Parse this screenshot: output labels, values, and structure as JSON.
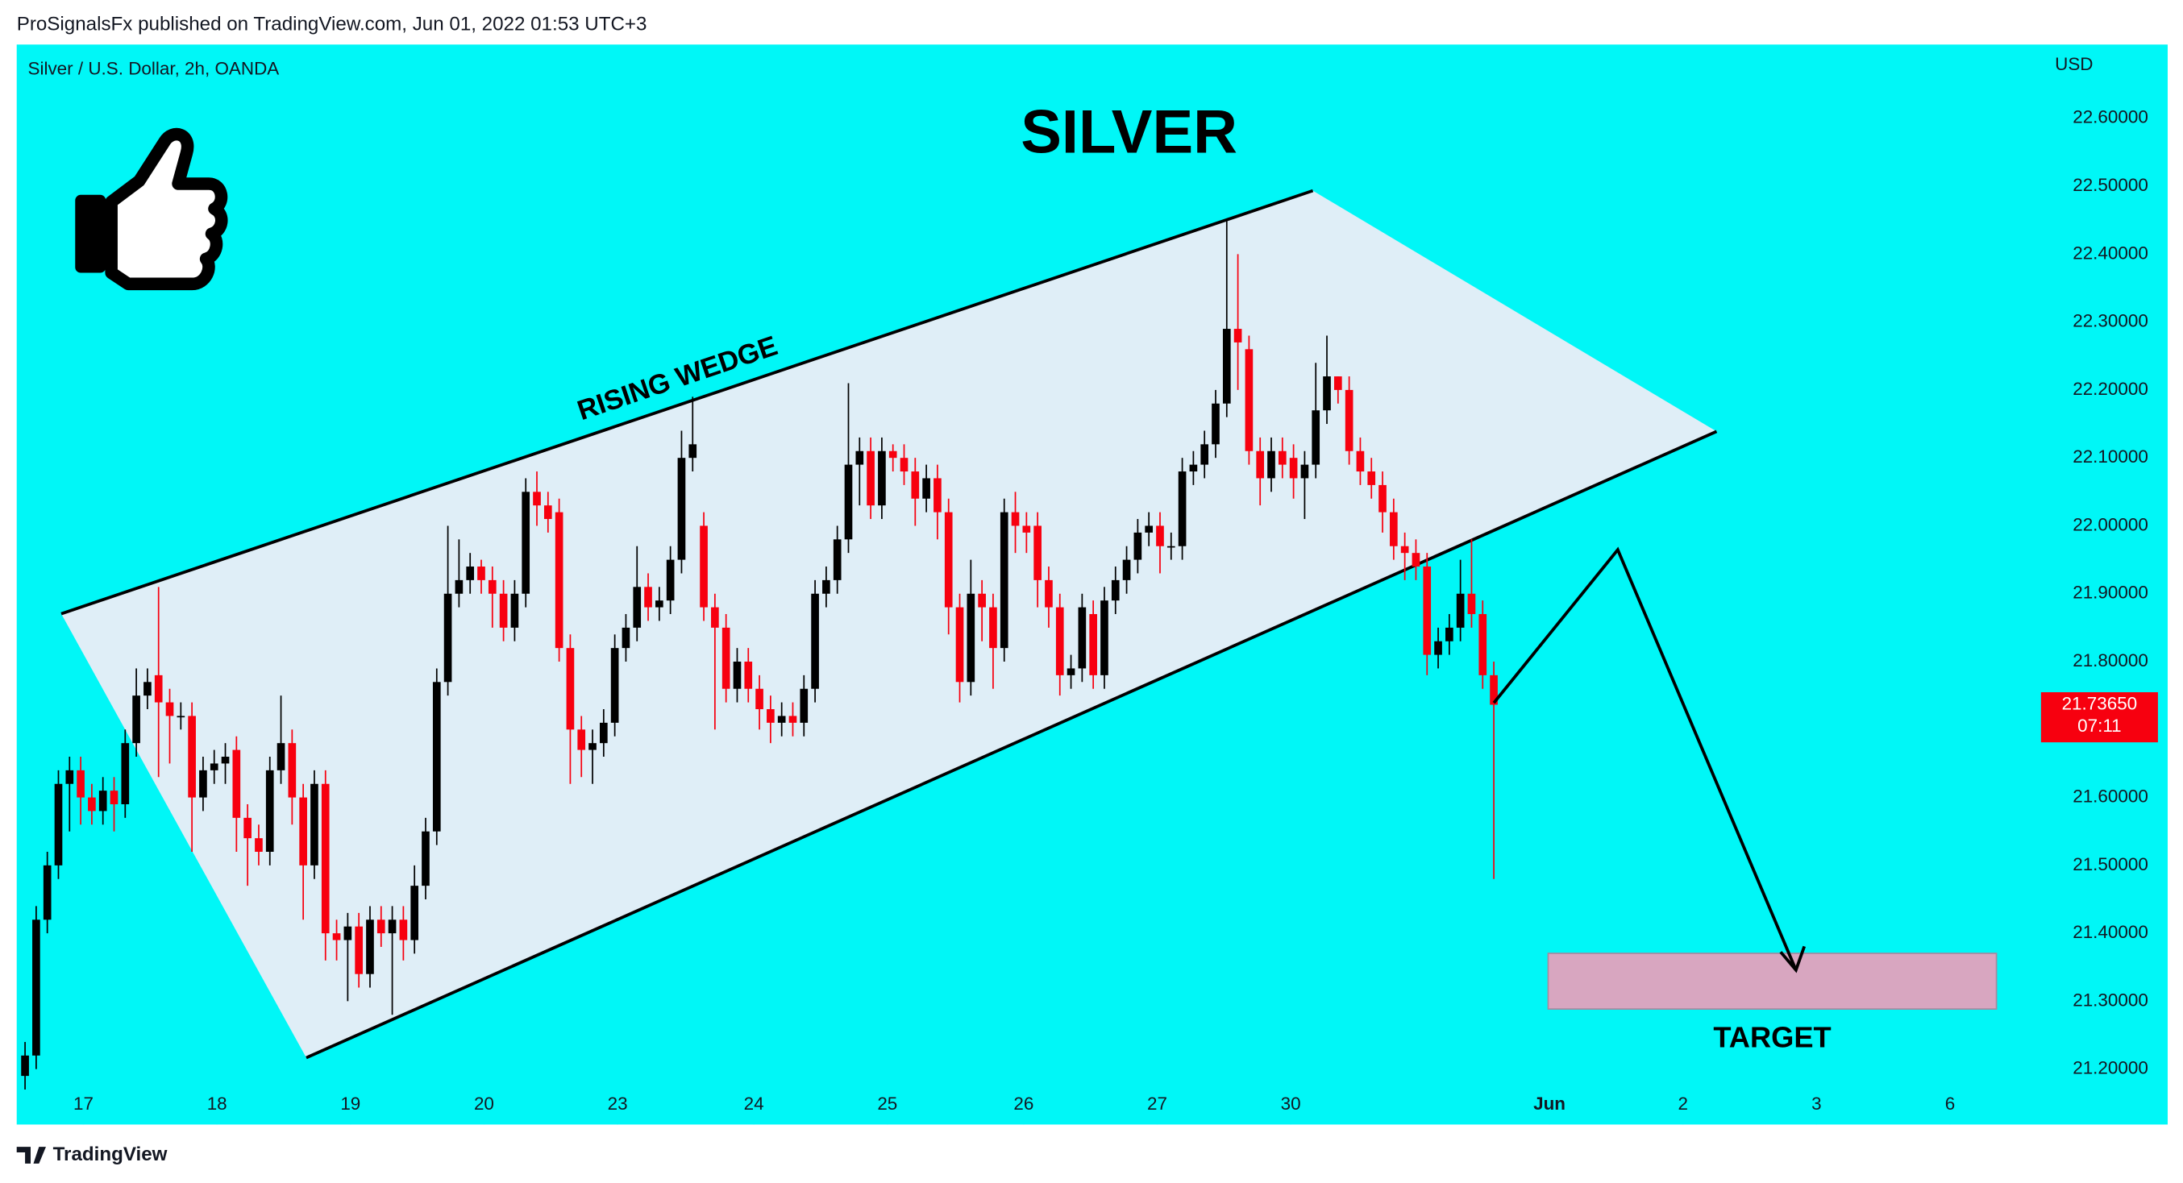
{
  "header": "ProSignalsFx published on TradingView.com, Jun 01, 2022 01:53 UTC+3",
  "footer": "TradingView",
  "chart_data": {
    "type": "candlestick",
    "symbol": "Silver / U.S. Dollar, 2h, OANDA",
    "currency": "USD",
    "title": "SILVER",
    "annotations": {
      "pattern": "RISING WEDGE",
      "target": "TARGET"
    },
    "background": "#00f7f7",
    "up_color": "#000000",
    "down_color": "#f7000f",
    "last_price": {
      "value": 21.7365,
      "label": "21.73650"
    },
    "countdown": "07:11",
    "xlim": [
      -0.75,
      179.8
    ],
    "xticks": [
      {
        "value": 5.25,
        "label": "17"
      },
      {
        "value": 17.25,
        "label": "18"
      },
      {
        "value": 29.25,
        "label": "19"
      },
      {
        "value": 41.25,
        "label": "20"
      },
      {
        "value": 53.25,
        "label": "23"
      },
      {
        "value": 65.5,
        "label": "24"
      },
      {
        "value": 77.5,
        "label": "25"
      },
      {
        "value": 89.75,
        "label": "26"
      },
      {
        "value": 101.75,
        "label": "27"
      },
      {
        "value": 113.75,
        "label": "30"
      },
      {
        "value": 137,
        "label": "Jun"
      },
      {
        "value": 149,
        "label": "2"
      },
      {
        "value": 161,
        "label": "3"
      },
      {
        "value": 173,
        "label": "6"
      }
    ],
    "ylim": [
      21.1184,
      22.7086
    ],
    "yticks": [
      {
        "value": 21.2,
        "label": "21.20000"
      },
      {
        "value": 21.3,
        "label": "21.30000"
      },
      {
        "value": 21.4,
        "label": "21.40000"
      },
      {
        "value": 21.5,
        "label": "21.50000"
      },
      {
        "value": 21.6,
        "label": "21.60000"
      },
      {
        "value": 21.7,
        "label": "21.70000"
      },
      {
        "value": 21.8,
        "label": "21.80000"
      },
      {
        "value": 21.9,
        "label": "21.90000"
      },
      {
        "value": 22.0,
        "label": "22.00000"
      },
      {
        "value": 22.1,
        "label": "22.10000"
      },
      {
        "value": 22.2,
        "label": "22.20000"
      },
      {
        "value": 22.3,
        "label": "22.30000"
      },
      {
        "value": 22.4,
        "label": "22.40000"
      },
      {
        "value": 22.5,
        "label": "22.50000"
      },
      {
        "value": 22.6,
        "label": "22.60000"
      }
    ],
    "open": [
      21.19,
      21.22,
      21.42,
      21.5,
      21.62,
      21.64,
      21.6,
      21.58,
      21.61,
      21.59,
      21.68,
      21.75,
      21.78,
      21.74,
      21.72,
      21.72,
      21.6,
      21.64,
      21.65,
      21.67,
      21.57,
      21.54,
      21.52,
      21.64,
      21.68,
      21.6,
      21.5,
      21.62,
      21.4,
      21.39,
      21.41,
      21.34,
      21.42,
      21.4,
      21.42,
      21.39,
      21.47,
      21.55,
      21.77,
      21.9,
      21.92,
      21.94,
      21.92,
      21.9,
      21.85,
      21.9,
      22.05,
      22.03,
      22.02,
      21.82,
      21.7,
      21.67,
      21.68,
      21.71,
      21.82,
      21.85,
      21.91,
      21.88,
      21.89,
      21.95,
      22.1,
      22.0,
      21.88,
      21.85,
      21.76,
      21.8,
      21.76,
      21.73,
      21.71,
      21.72,
      21.71,
      21.76,
      21.9,
      21.92,
      21.98,
      22.09,
      22.11,
      22.03,
      22.11,
      22.1,
      22.08,
      22.04,
      22.07,
      22.02,
      21.88,
      21.77,
      21.9,
      21.88,
      21.82,
      22.02,
      22.0,
      22.0,
      21.92,
      21.88,
      21.78,
      21.79,
      21.87,
      21.78,
      21.89,
      21.92,
      21.95,
      21.99,
      22.0,
      21.97,
      21.97,
      22.08,
      22.09,
      22.12,
      22.18,
      22.29,
      22.26,
      22.11,
      22.07,
      22.11,
      22.1,
      22.07,
      22.09,
      22.17,
      22.22,
      22.2,
      22.11,
      22.08,
      22.06,
      22.02,
      21.97,
      21.96,
      21.94,
      21.81,
      21.83,
      21.85,
      21.9,
      21.87,
      21.78
    ],
    "high": [
      21.24,
      21.44,
      21.52,
      21.64,
      21.66,
      21.66,
      21.62,
      21.63,
      21.63,
      21.7,
      21.79,
      21.79,
      21.91,
      21.76,
      21.74,
      21.74,
      21.66,
      21.67,
      21.68,
      21.69,
      21.59,
      21.56,
      21.66,
      21.75,
      21.7,
      21.62,
      21.64,
      21.64,
      21.42,
      21.43,
      21.43,
      21.44,
      21.44,
      21.44,
      21.44,
      21.5,
      21.57,
      21.79,
      22.0,
      21.98,
      21.96,
      21.95,
      21.94,
      21.92,
      21.92,
      22.07,
      22.08,
      22.05,
      22.04,
      21.84,
      21.72,
      21.7,
      21.73,
      21.84,
      21.87,
      21.97,
      21.93,
      21.91,
      21.97,
      22.14,
      22.19,
      22.02,
      21.9,
      21.87,
      21.82,
      21.82,
      21.78,
      21.75,
      21.74,
      21.74,
      21.78,
      21.92,
      21.94,
      22.0,
      22.21,
      22.13,
      22.13,
      22.13,
      22.12,
      22.12,
      22.1,
      22.09,
      22.09,
      22.04,
      21.9,
      21.95,
      21.92,
      21.9,
      22.04,
      22.05,
      22.02,
      22.02,
      21.94,
      21.9,
      21.81,
      21.9,
      21.89,
      21.91,
      21.94,
      21.97,
      22.01,
      22.02,
      22.02,
      21.99,
      22.1,
      22.11,
      22.14,
      22.2,
      22.45,
      22.4,
      22.28,
      22.13,
      22.13,
      22.13,
      22.12,
      22.11,
      22.24,
      22.28,
      22.22,
      22.22,
      22.13,
      22.1,
      22.08,
      22.04,
      21.99,
      21.98,
      21.96,
      21.85,
      21.87,
      21.95,
      21.98,
      21.89,
      21.8
    ],
    "low": [
      21.17,
      21.2,
      21.4,
      21.48,
      21.55,
      21.56,
      21.56,
      21.56,
      21.55,
      21.57,
      21.66,
      21.73,
      21.63,
      21.65,
      21.7,
      21.52,
      21.58,
      21.62,
      21.62,
      21.52,
      21.47,
      21.5,
      21.5,
      21.62,
      21.56,
      21.42,
      21.48,
      21.36,
      21.36,
      21.3,
      21.32,
      21.32,
      21.38,
      21.28,
      21.36,
      21.37,
      21.45,
      21.53,
      21.75,
      21.88,
      21.9,
      21.9,
      21.85,
      21.83,
      21.83,
      21.88,
      22.0,
      21.99,
      21.8,
      21.62,
      21.63,
      21.62,
      21.66,
      21.69,
      21.8,
      21.83,
      21.86,
      21.86,
      21.87,
      21.93,
      22.08,
      21.86,
      21.7,
      21.74,
      21.74,
      21.74,
      21.7,
      21.68,
      21.69,
      21.69,
      21.69,
      21.74,
      21.88,
      21.9,
      21.96,
      22.03,
      22.01,
      22.01,
      22.08,
      22.06,
      22.0,
      22.02,
      21.98,
      21.84,
      21.74,
      21.75,
      21.83,
      21.76,
      21.8,
      21.96,
      21.96,
      21.88,
      21.85,
      21.75,
      21.76,
      21.77,
      21.76,
      21.76,
      21.87,
      21.9,
      21.93,
      21.97,
      21.93,
      21.95,
      21.95,
      22.06,
      22.07,
      22.1,
      22.16,
      22.2,
      22.09,
      22.03,
      22.05,
      22.07,
      22.04,
      22.01,
      22.07,
      22.15,
      22.18,
      22.09,
      22.06,
      22.04,
      21.99,
      21.95,
      21.92,
      21.92,
      21.78,
      21.79,
      21.81,
      21.83,
      21.85,
      21.76,
      21.48
    ],
    "close": [
      21.22,
      21.42,
      21.5,
      21.62,
      21.64,
      21.6,
      21.58,
      21.61,
      21.59,
      21.68,
      21.75,
      21.77,
      21.74,
      21.72,
      21.72,
      21.6,
      21.64,
      21.65,
      21.66,
      21.57,
      21.54,
      21.52,
      21.64,
      21.68,
      21.6,
      21.5,
      21.62,
      21.4,
      21.39,
      21.41,
      21.34,
      21.42,
      21.4,
      21.42,
      21.39,
      21.47,
      21.55,
      21.77,
      21.9,
      21.92,
      21.94,
      21.92,
      21.9,
      21.85,
      21.9,
      22.05,
      22.03,
      22.01,
      21.82,
      21.7,
      21.67,
      21.68,
      21.71,
      21.82,
      21.85,
      21.91,
      21.88,
      21.89,
      21.95,
      22.1,
      22.12,
      21.88,
      21.85,
      21.76,
      21.8,
      21.76,
      21.73,
      21.71,
      21.72,
      21.71,
      21.76,
      21.9,
      21.92,
      21.98,
      22.09,
      22.11,
      22.03,
      22.11,
      22.1,
      22.08,
      22.04,
      22.07,
      22.02,
      21.88,
      21.77,
      21.9,
      21.88,
      21.82,
      22.02,
      22.0,
      21.99,
      21.92,
      21.88,
      21.78,
      21.79,
      21.88,
      21.78,
      21.89,
      21.92,
      21.95,
      21.99,
      22.0,
      21.97,
      21.97,
      22.08,
      22.09,
      22.12,
      22.18,
      22.29,
      22.27,
      22.11,
      22.07,
      22.11,
      22.09,
      22.07,
      22.09,
      22.17,
      22.22,
      22.2,
      22.11,
      22.08,
      22.06,
      22.02,
      21.97,
      21.96,
      21.94,
      21.81,
      21.83,
      21.85,
      21.9,
      21.87,
      21.78,
      21.7365
    ]
  }
}
